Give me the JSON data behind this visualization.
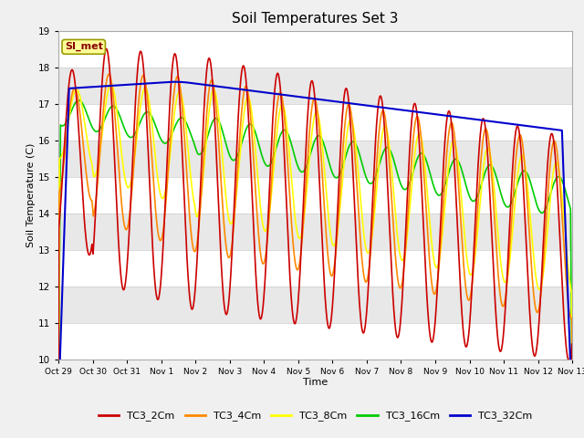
{
  "title": "Soil Temperatures Set 3",
  "xlabel": "Time",
  "ylabel": "Soil Temperature (C)",
  "ylim": [
    10.0,
    19.0
  ],
  "yticks": [
    10.0,
    11.0,
    12.0,
    13.0,
    14.0,
    15.0,
    16.0,
    17.0,
    18.0,
    19.0
  ],
  "xtick_labels": [
    "Oct 29",
    "Oct 30",
    "Oct 31",
    "Nov 1",
    "Nov 2",
    "Nov 3",
    "Nov 4",
    "Nov 5",
    "Nov 6",
    "Nov 7",
    "Nov 8",
    "Nov 9",
    "Nov 10",
    "Nov 11",
    "Nov 12",
    "Nov 13"
  ],
  "colors": {
    "TC3_2Cm": "#cc0000",
    "TC3_4Cm": "#ff8800",
    "TC3_8Cm": "#ffff00",
    "TC3_16Cm": "#00cc00",
    "TC3_32Cm": "#0000cc"
  },
  "annotation_text": "SI_met",
  "annotation_color": "#880000",
  "annotation_bg": "#ffff99",
  "grid_stripe_color": "#d8d8d8",
  "plot_bg": "#e0e0e0",
  "fig_bg": "#f0f0f0",
  "line_width": 1.2
}
